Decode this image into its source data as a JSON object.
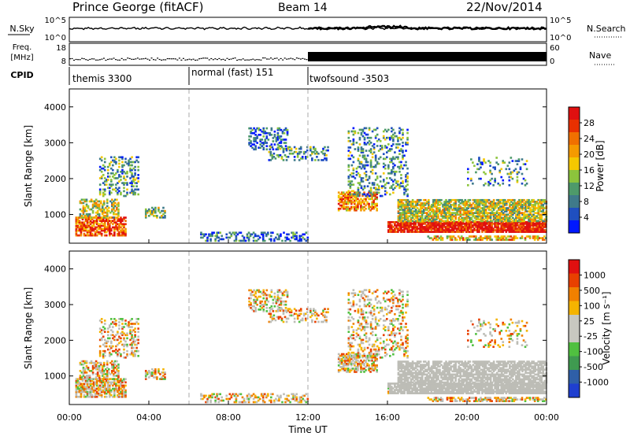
{
  "header": {
    "station": "Prince George (fitACF)",
    "beam": "Beam 14",
    "date": "22/Nov/2014"
  },
  "panels": {
    "nsky": {
      "label": "N.Sky",
      "right_label": "N.Search",
      "left_ticks": [
        "10^5",
        "10^0"
      ],
      "right_ticks": [
        "10^5",
        "10^0"
      ]
    },
    "freq": {
      "label_line1": "Freq.",
      "label_line2": "[MHz]",
      "right_label": "Nave",
      "left_ticks": [
        "18",
        "8"
      ],
      "right_ticks": [
        "60",
        "0"
      ]
    },
    "cpid": {
      "label": "CPID",
      "segments": [
        {
          "text": "themis 3300",
          "start_hour": 0
        },
        {
          "text": "normal (fast) 151",
          "start_hour": 6
        },
        {
          "text": "twofsound -3503",
          "start_hour": 12
        }
      ]
    }
  },
  "colors": {
    "power_scale": [
      "#0018ff",
      "#1f4fc0",
      "#3f7a8a",
      "#4e9a6a",
      "#8cc43c",
      "#f5c800",
      "#f59a00",
      "#f07000",
      "#e83000",
      "#e01010"
    ],
    "velocity_scale": [
      "#1f3fd0",
      "#2f5fa8",
      "#3f9a50",
      "#50c040",
      "#c8c8c0",
      "#c8c8c0",
      "#f5b400",
      "#f08000",
      "#e84000",
      "#e01010"
    ],
    "backscatter_gray": "#bdbdb6"
  },
  "chart_data": [
    {
      "type": "heatmap",
      "name": "Power",
      "xlabel": "",
      "ylabel": "Slant Range [km]",
      "x_range_hours": [
        0,
        24
      ],
      "ylim": [
        200,
        4500
      ],
      "y_ticks": [
        1000,
        2000,
        3000,
        4000
      ],
      "colorbar": {
        "label": "Power [dB]",
        "ticks": [
          "28",
          "24",
          "20",
          "16",
          "12",
          "8",
          "4"
        ],
        "range": [
          0,
          30
        ]
      },
      "mode_change_hours": [
        6,
        12
      ]
    },
    {
      "type": "heatmap",
      "name": "Velocity",
      "xlabel": "Time UT",
      "ylabel": "Slant Range [km]",
      "x_range_hours": [
        0,
        24
      ],
      "x_ticks": [
        "00:00",
        "04:00",
        "08:00",
        "12:00",
        "16:00",
        "20:00",
        "00:00"
      ],
      "ylim": [
        200,
        4500
      ],
      "y_ticks": [
        1000,
        2000,
        3000,
        4000
      ],
      "colorbar": {
        "label": "Velocity [m s⁻¹]",
        "ticks": [
          "1000",
          "500",
          "100",
          "25",
          "-25",
          "-100",
          "-500",
          "-1000"
        ]
      },
      "mode_change_hours": [
        6,
        12
      ]
    }
  ]
}
